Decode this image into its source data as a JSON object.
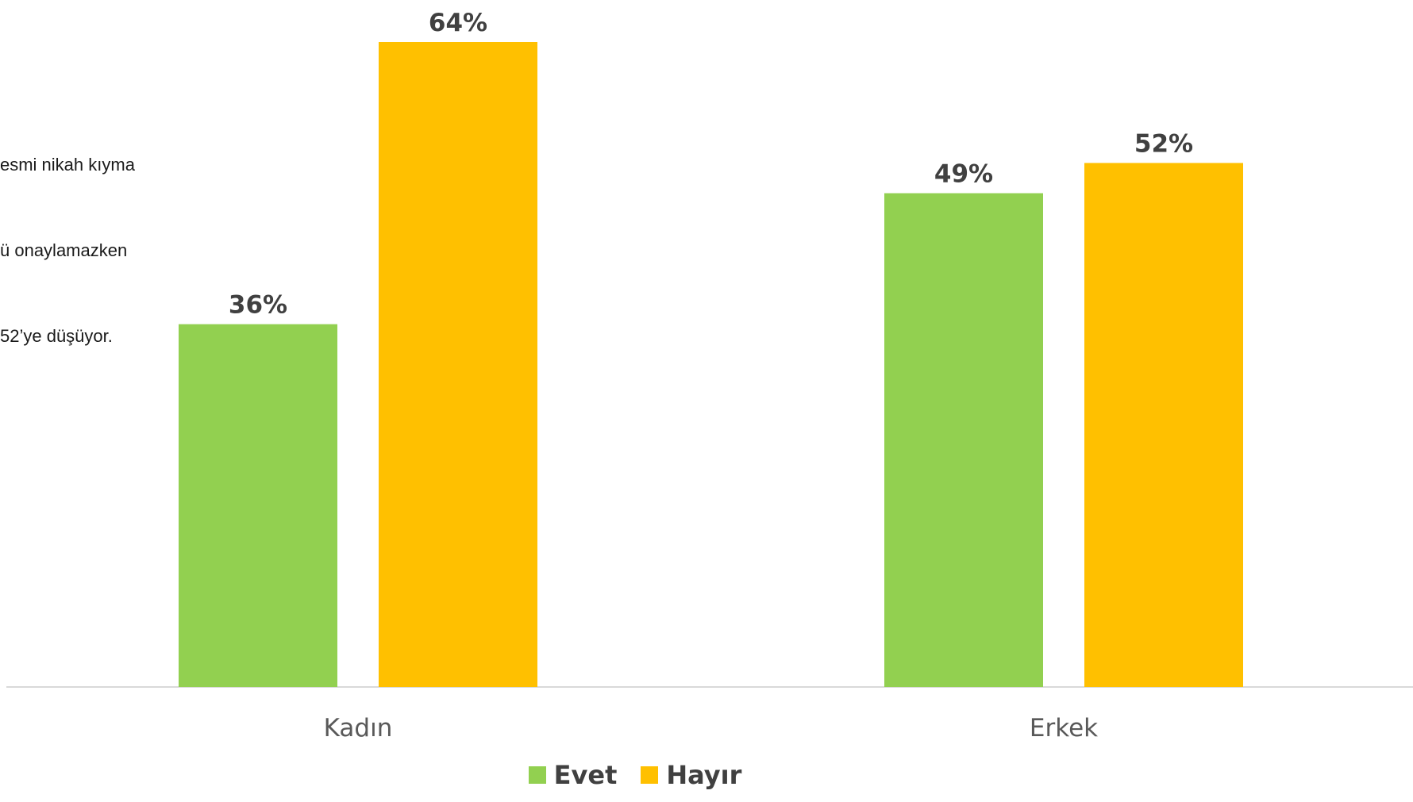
{
  "chart_data": {
    "type": "bar",
    "categories": [
      "Kadın",
      "Erkek"
    ],
    "series": [
      {
        "name": "Evet",
        "values": [
          36,
          49
        ],
        "labels": [
          "36%",
          "49%"
        ],
        "color": "#92d050"
      },
      {
        "name": "Hayır",
        "values": [
          64,
          52
        ],
        "labels": [
          "64%",
          "52%"
        ],
        "color": "#ffc000"
      }
    ],
    "ylim": [
      0,
      64
    ],
    "grid": false,
    "legend_position": "bottom",
    "annotation_lines": [
      "esmi nikah kıyma",
      "ü onaylamazken",
      "52’ye düşüyor."
    ]
  }
}
